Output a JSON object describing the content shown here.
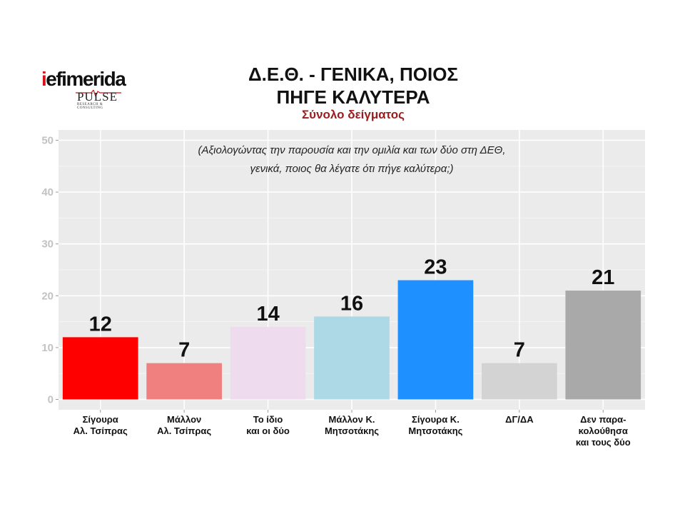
{
  "logo": {
    "brand_prefix": "i",
    "brand_rest": "efimerida",
    "pulse": "PULSE",
    "pulse_sub": "RESEARCH & CONSULTING"
  },
  "header": {
    "title_line1": "Δ.Ε.Θ. - ΓΕΝΙΚΑ, ΠΟΙΟΣ",
    "title_line2": "ΠΗΓΕ ΚΑΛΥΤΕΡΑ",
    "subtitle": "Σύνολο δείγματος"
  },
  "colors": {
    "subtitle": "#9b1c1c",
    "panel": "#ebebeb",
    "gridline": "#ffffff",
    "tick_text": "#c2c2c2"
  },
  "chart_data": {
    "type": "bar",
    "title": "Δ.Ε.Θ. - ΓΕΝΙΚΑ, ΠΟΙΟΣ ΠΗΓΕ ΚΑΛΥΤΕΡΑ",
    "subtitle": "Σύνολο δείγματος",
    "annotation": [
      "(Αξιολογώντας την παρουσία και την ομιλία και των δύο στη ΔΕΘ,",
      "γενικά, ποιος θα λέγατε ότι πήγε καλύτερα;)"
    ],
    "categories": [
      [
        "Σίγουρα",
        "Αλ. Τσίπρας"
      ],
      [
        "Μάλλον",
        "Αλ. Τσίπρας"
      ],
      [
        "Το ίδιο",
        "και οι δύο"
      ],
      [
        "Μάλλον Κ.",
        "Μητσοτάκης"
      ],
      [
        "Σίγουρα Κ.",
        "Μητσοτάκης"
      ],
      [
        "ΔΓ/ΔΑ"
      ],
      [
        "Δεν παρα-",
        "κολούθησα",
        "και τους δύο"
      ]
    ],
    "values": [
      12,
      7,
      14,
      16,
      23,
      7,
      21
    ],
    "bar_colors": [
      "#ff0000",
      "#f08080",
      "#eedcee",
      "#add8e6",
      "#1e90ff",
      "#d3d3d3",
      "#a9a9a9"
    ],
    "yticks": [
      0,
      10,
      20,
      30,
      40,
      50
    ],
    "ylim": [
      -2,
      52
    ],
    "grid": true,
    "legend": "none"
  }
}
